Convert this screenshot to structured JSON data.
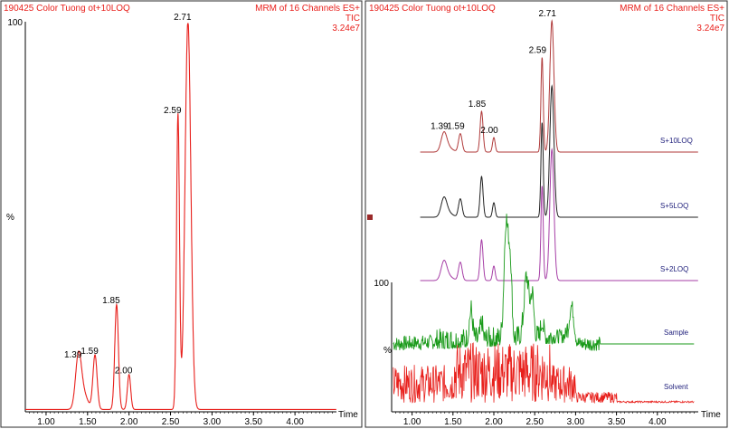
{
  "chart_data": [
    {
      "type": "line",
      "header": {
        "left": "190425 Color Tuong ot+10LOQ",
        "right_line1": "MRM of 16 Channels ES+",
        "right_line2": "TIC",
        "right_line3": "3.24e7"
      },
      "xlabel": "Time",
      "ylabel": "%",
      "y_top_label": "100",
      "xlim": [
        0.75,
        4.5
      ],
      "ylim": [
        0,
        100
      ],
      "x_ticks": [
        "1.00",
        "1.50",
        "2.00",
        "2.50",
        "3.00",
        "3.50",
        "4.00"
      ],
      "peaks": [
        {
          "rt": 1.39,
          "label": "1.39",
          "height": 13
        },
        {
          "rt": 1.59,
          "label": "1.59",
          "height": 14
        },
        {
          "rt": 1.85,
          "label": "1.85",
          "height": 27
        },
        {
          "rt": 2.0,
          "label": "2.00",
          "height": 9
        },
        {
          "rt": 2.59,
          "label": "2.59",
          "height": 76
        },
        {
          "rt": 2.71,
          "label": "2.71",
          "height": 100
        }
      ],
      "color": "#e8201c"
    },
    {
      "type": "line",
      "header": {
        "left": "190425 Color Tuong ot+10LOQ",
        "right_line1": "MRM of 16 Channels ES+",
        "right_line2": "TIC",
        "right_line3": "3.24e7"
      },
      "xlabel": "Time",
      "ylabel": "%",
      "y_top_label": "100",
      "xlim": [
        0.75,
        4.5
      ],
      "x_ticks": [
        "1.00",
        "1.50",
        "2.00",
        "2.50",
        "3.00",
        "3.50",
        "4.00"
      ],
      "top_trace_peak_labels": [
        "1.39",
        "1.59",
        "1.85",
        "2.00",
        "2.59",
        "2.71"
      ],
      "series": [
        {
          "name": "S+10LOQ",
          "color": "#b03a3a"
        },
        {
          "name": "S+5LOQ",
          "color": "#222222"
        },
        {
          "name": "S+2LOQ",
          "color": "#a63ea6"
        },
        {
          "name": "Sample",
          "color": "#1a9a1a"
        },
        {
          "name": "Solvent",
          "color": "#e8201c"
        }
      ]
    }
  ]
}
